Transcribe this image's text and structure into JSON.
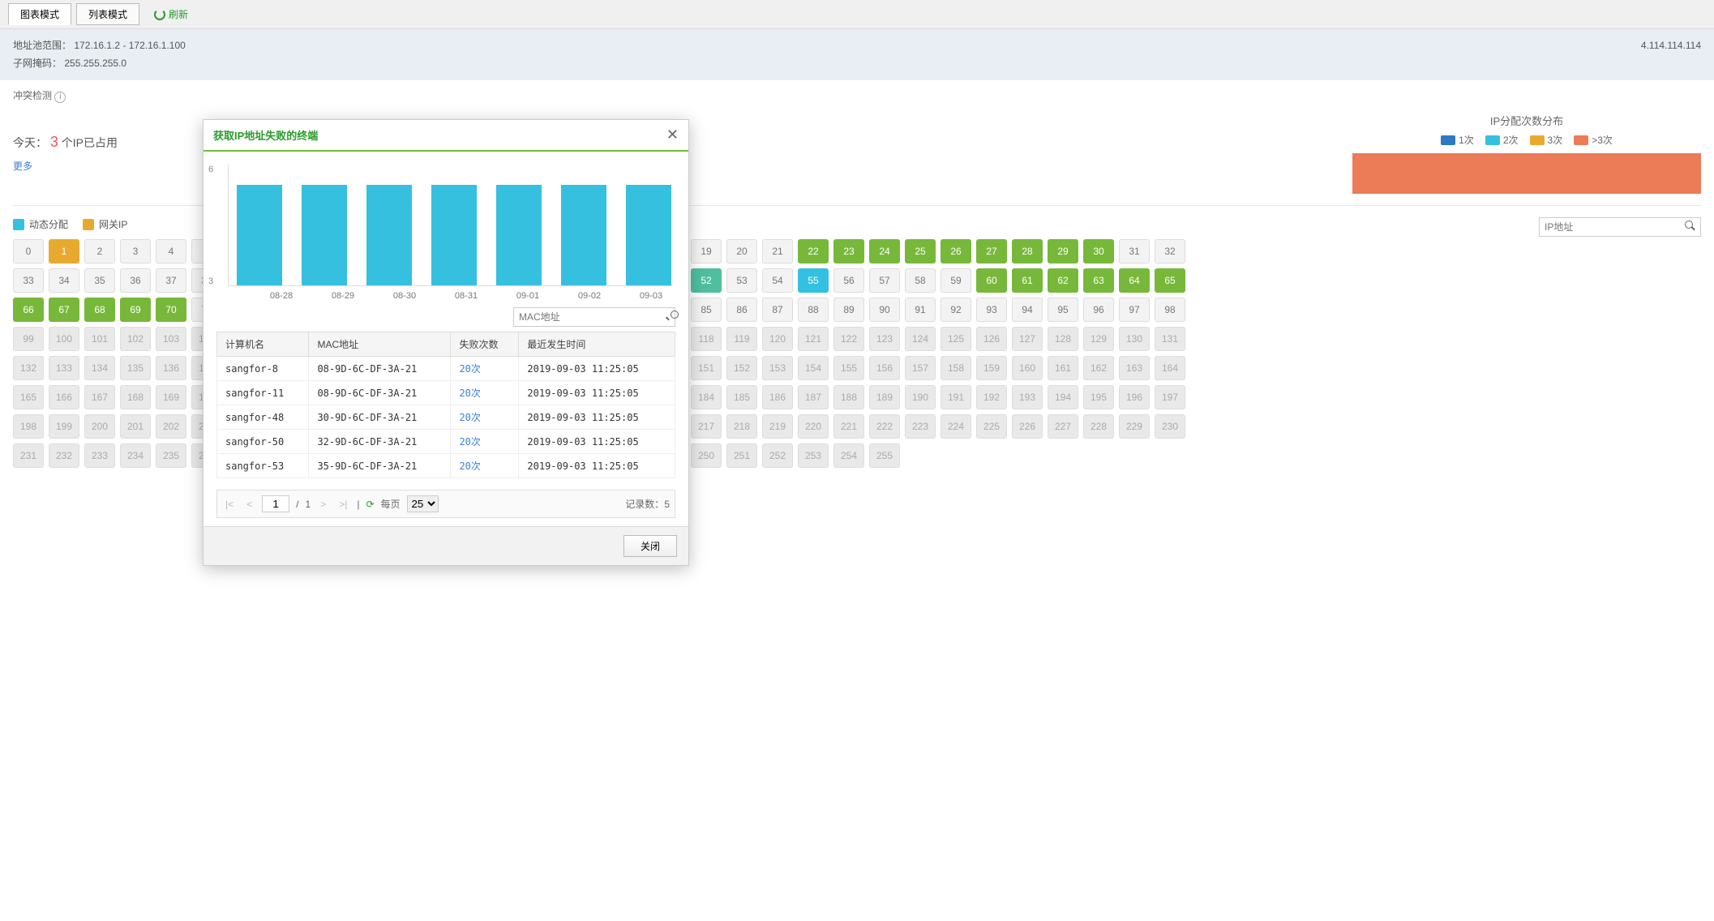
{
  "toolbar": {
    "tab_chart": "图表模式",
    "tab_list": "列表模式",
    "refresh": "刷新"
  },
  "info": {
    "range_label": "地址池范围：",
    "range_value": "172.16.1.2 - 172.16.1.100",
    "mask_label": "子网掩码：",
    "mask_value": "255.255.255.0",
    "right_suffix": "4.114.114.114"
  },
  "conflict": {
    "label": "冲突检测"
  },
  "today": {
    "prefix": "今天：",
    "num": "3",
    "suffix": "个IP已占用"
  },
  "more": "更多",
  "dist": {
    "title": "IP分配次数分布",
    "legend": [
      {
        "label": "1次",
        "color": "#2f79c4"
      },
      {
        "label": "2次",
        "color": "#36c0df"
      },
      {
        "label": "3次",
        "color": "#e8aa2e"
      },
      {
        "label": ">3次",
        "color": "#ec7b57"
      }
    ],
    "fill_color": "#ec7b57"
  },
  "ip_legend": [
    {
      "label": "动态分配",
      "color": "#34c0e3"
    },
    {
      "label": "网关IP",
      "color": "#e8aa2e"
    }
  ],
  "ip_search_placeholder": "IP地址",
  "ip_grid": {
    "start": 0,
    "end": 255,
    "gateway": [
      1
    ],
    "dynamic": [
      55
    ],
    "manual": [
      52
    ],
    "static": [
      22,
      23,
      24,
      25,
      26,
      27,
      28,
      29,
      30,
      60,
      61,
      62,
      63,
      64,
      65,
      66,
      67,
      68,
      69,
      70
    ],
    "dim_threshold": 99
  },
  "modal": {
    "title": "获取IP地址失败的终端",
    "chart": {
      "y_ticks": [
        "6",
        "3"
      ],
      "categories": [
        "08-28",
        "08-29",
        "08-30",
        "08-31",
        "09-01",
        "09-02",
        "09-03"
      ],
      "values": [
        5,
        5,
        5,
        5,
        5,
        5,
        5
      ],
      "y_max": 6,
      "bar_color": "#36c0df"
    },
    "mac_search_placeholder": "MAC地址",
    "columns": [
      "计算机名",
      "MAC地址",
      "失败次数",
      "最近发生时间"
    ],
    "rows": [
      [
        "sangfor-8",
        "08-9D-6C-DF-3A-21",
        "20次",
        "2019-09-03 11:25:05"
      ],
      [
        "sangfor-11",
        "08-9D-6C-DF-3A-21",
        "20次",
        "2019-09-03 11:25:05"
      ],
      [
        "sangfor-48",
        "30-9D-6C-DF-3A-21",
        "20次",
        "2019-09-03 11:25:05"
      ],
      [
        "sangfor-50",
        "32-9D-6C-DF-3A-21",
        "20次",
        "2019-09-03 11:25:05"
      ],
      [
        "sangfor-53",
        "35-9D-6C-DF-3A-21",
        "20次",
        "2019-09-03 11:25:05"
      ]
    ],
    "pager": {
      "page": "1",
      "total": "1",
      "per_page_label": "每页",
      "per_page": "25",
      "count_label": "记录数：",
      "count": "5"
    },
    "close": "关闭"
  }
}
